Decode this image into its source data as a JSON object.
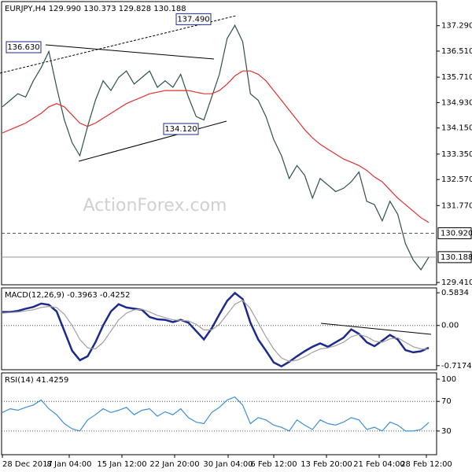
{
  "watermark": "ActionForex.com",
  "x_axis_labels": [
    "28 Dec 2017",
    "8 Jan 04:00",
    "15 Jan 12:00",
    "22 Jan 20:00",
    "30 Jan 04:00",
    "6 Feb 12:00",
    "13 Feb 20:00",
    "21 Feb 04:00",
    "28 Feb 12:00"
  ],
  "chart_data": [
    {
      "type": "line",
      "title": "EURJPY,H4  129.990 130.373 129.828 130.188",
      "ylim": [
        129.34,
        138.03
      ],
      "yticks": [
        {
          "value": 137.29,
          "label": "137.290"
        },
        {
          "value": 136.51,
          "label": "136.510"
        },
        {
          "value": 135.71,
          "label": "135.710"
        },
        {
          "value": 134.93,
          "label": "134.930"
        },
        {
          "value": 134.15,
          "label": "134.150"
        },
        {
          "value": 133.35,
          "label": "133.350"
        },
        {
          "value": 132.57,
          "label": "132.570"
        },
        {
          "value": 131.77,
          "label": "131.770"
        },
        {
          "value": 129.41,
          "label": "129.410"
        }
      ],
      "levels": [
        {
          "value": 130.92,
          "label": "130.920",
          "style": "dashed"
        },
        {
          "value": 130.188,
          "label": "130.188",
          "style": "solid"
        }
      ],
      "annotations": [
        {
          "value": 136.63,
          "label": "136.630"
        },
        {
          "value": 137.49,
          "label": "137.490"
        },
        {
          "value": 134.12,
          "label": "134.120"
        }
      ],
      "series": [
        {
          "color": "#2f4f4f",
          "values": [
            134.8,
            135.0,
            135.2,
            135.1,
            135.6,
            136.0,
            136.5,
            135.4,
            134.4,
            133.7,
            133.3,
            134.2,
            135.0,
            135.6,
            135.3,
            135.7,
            135.9,
            135.5,
            135.7,
            135.9,
            135.4,
            135.6,
            135.4,
            135.8,
            135.1,
            134.5,
            134.4,
            135.1,
            135.8,
            136.9,
            137.3,
            136.8,
            135.2,
            135.0,
            134.5,
            133.8,
            133.3,
            132.6,
            133.0,
            132.7,
            132.0,
            132.6,
            132.4,
            132.2,
            132.3,
            132.5,
            132.8,
            131.9,
            131.8,
            131.3,
            131.9,
            131.5,
            130.6,
            130.1,
            129.8,
            130.188
          ]
        },
        {
          "color": "#e03030",
          "values": [
            134.0,
            134.1,
            134.2,
            134.3,
            134.45,
            134.6,
            134.8,
            134.9,
            134.8,
            134.55,
            134.3,
            134.2,
            134.3,
            134.45,
            134.6,
            134.75,
            134.9,
            135.0,
            135.1,
            135.2,
            135.25,
            135.3,
            135.3,
            135.3,
            135.3,
            135.25,
            135.2,
            135.2,
            135.3,
            135.5,
            135.75,
            135.9,
            135.9,
            135.8,
            135.6,
            135.3,
            135.0,
            134.7,
            134.4,
            134.1,
            133.85,
            133.65,
            133.5,
            133.35,
            133.2,
            133.1,
            133.0,
            132.85,
            132.65,
            132.5,
            132.25,
            132.0,
            131.8,
            131.6,
            131.4,
            131.25
          ]
        }
      ]
    },
    {
      "type": "line",
      "title": "MACD(12,26,9) -0.3963 -0.4252",
      "ylim": [
        -0.79,
        0.67
      ],
      "yticks": [
        0.5834,
        {
          "value": 0,
          "label": "0.00"
        },
        -0.7174
      ],
      "levels": [
        {
          "value": 0,
          "style": "dotted"
        }
      ],
      "series": [
        {
          "color": "#1c2a8c",
          "values": [
            0.24,
            0.24,
            0.26,
            0.3,
            0.33,
            0.39,
            0.37,
            0.25,
            -0.1,
            -0.45,
            -0.62,
            -0.55,
            -0.3,
            0.0,
            0.25,
            0.38,
            0.32,
            0.3,
            0.28,
            0.15,
            0.11,
            0.1,
            0.06,
            0.1,
            0.05,
            -0.1,
            -0.25,
            -0.05,
            0.2,
            0.44,
            0.58,
            0.47,
            0.05,
            -0.25,
            -0.45,
            -0.66,
            -0.73,
            -0.65,
            -0.55,
            -0.46,
            -0.38,
            -0.32,
            -0.38,
            -0.3,
            -0.22,
            -0.07,
            -0.15,
            -0.3,
            -0.37,
            -0.27,
            -0.17,
            -0.25,
            -0.44,
            -0.48,
            -0.46,
            -0.3963
          ]
        },
        {
          "color": "#a0a0a0",
          "values": [
            0.22,
            0.23,
            0.24,
            0.26,
            0.28,
            0.32,
            0.34,
            0.32,
            0.2,
            0.0,
            -0.25,
            -0.4,
            -0.42,
            -0.3,
            -0.1,
            0.1,
            0.22,
            0.28,
            0.29,
            0.24,
            0.18,
            0.14,
            0.1,
            0.09,
            0.08,
            0.02,
            -0.08,
            -0.08,
            0.02,
            0.2,
            0.38,
            0.45,
            0.3,
            0.05,
            -0.2,
            -0.42,
            -0.58,
            -0.64,
            -0.62,
            -0.56,
            -0.48,
            -0.42,
            -0.4,
            -0.36,
            -0.3,
            -0.2,
            -0.16,
            -0.2,
            -0.28,
            -0.3,
            -0.24,
            -0.22,
            -0.3,
            -0.38,
            -0.42,
            -0.4252
          ]
        }
      ]
    },
    {
      "type": "line",
      "title": "RSI(14) 41.4259",
      "ylim": [
        -2,
        108.5
      ],
      "yticks": [
        100,
        70,
        30
      ],
      "levels": [
        {
          "value": 70,
          "style": "dotted"
        },
        {
          "value": 30,
          "style": "dotted"
        }
      ],
      "series": [
        {
          "color": "#3d8fd8",
          "values": [
            55,
            60,
            58,
            62,
            65,
            72,
            60,
            52,
            40,
            33,
            30,
            45,
            52,
            60,
            55,
            58,
            62,
            52,
            58,
            60,
            50,
            56,
            52,
            60,
            48,
            42,
            40,
            55,
            62,
            72,
            76,
            65,
            40,
            48,
            45,
            38,
            35,
            30,
            45,
            38,
            32,
            45,
            40,
            38,
            42,
            48,
            45,
            32,
            35,
            30,
            42,
            38,
            30,
            30,
            32,
            41.4259
          ]
        }
      ]
    }
  ]
}
